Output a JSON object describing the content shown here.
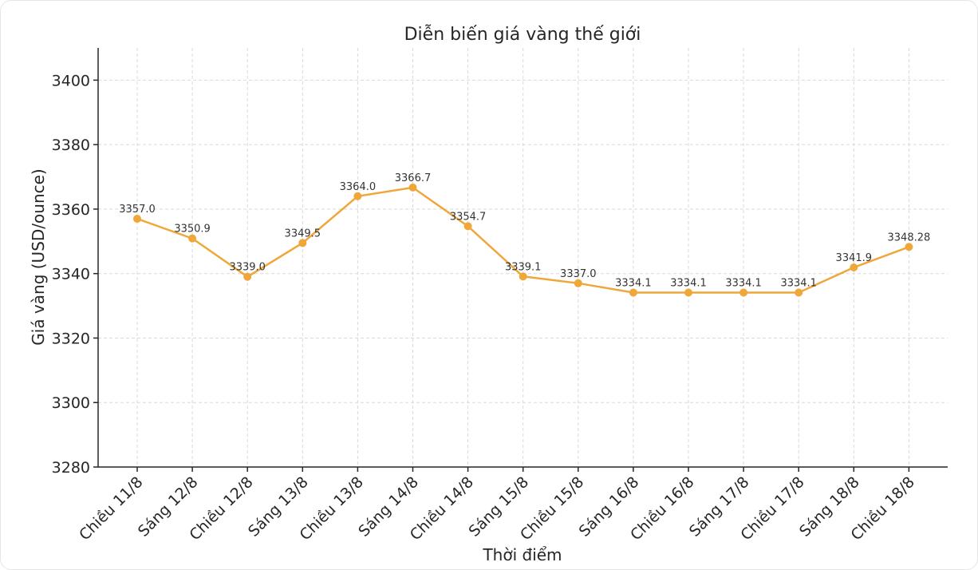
{
  "chart_data": {
    "type": "line",
    "title": "Diễn biến giá vàng thế giới",
    "xlabel": "Thời điểm",
    "ylabel": "Giá vàng (USD/ounce)",
    "categories": [
      "Chiều 11/8",
      "Sáng 12/8",
      "Chiều 12/8",
      "Sáng 13/8",
      "Chiều 13/8",
      "Sáng 14/8",
      "Chiều 14/8",
      "Sáng 15/8",
      "Chiều 15/8",
      "Sáng 16/8",
      "Chiều 16/8",
      "Sáng 17/8",
      "Chiều 17/8",
      "Sáng 18/8",
      "Chiều 18/8"
    ],
    "series": [
      {
        "values": [
          3357.0,
          3350.9,
          3339.0,
          3349.5,
          3364.0,
          3366.7,
          3354.7,
          3339.1,
          3337.0,
          3334.1,
          3334.1,
          3334.1,
          3334.1,
          3341.9,
          3348.28
        ]
      }
    ],
    "data_labels": [
      "3357.0",
      "3350.9",
      "3339.0",
      "3349.5",
      "3364.0",
      "3366.7",
      "3354.7",
      "3339.1",
      "3337.0",
      "3334.1",
      "3334.1",
      "3334.1",
      "3334.1",
      "3341.9",
      "3348.28"
    ],
    "yticks": [
      3280,
      3300,
      3320,
      3340,
      3360,
      3380,
      3400
    ],
    "ylim": [
      3280,
      3410
    ],
    "grid": true,
    "line_color": "#f0a73a"
  }
}
